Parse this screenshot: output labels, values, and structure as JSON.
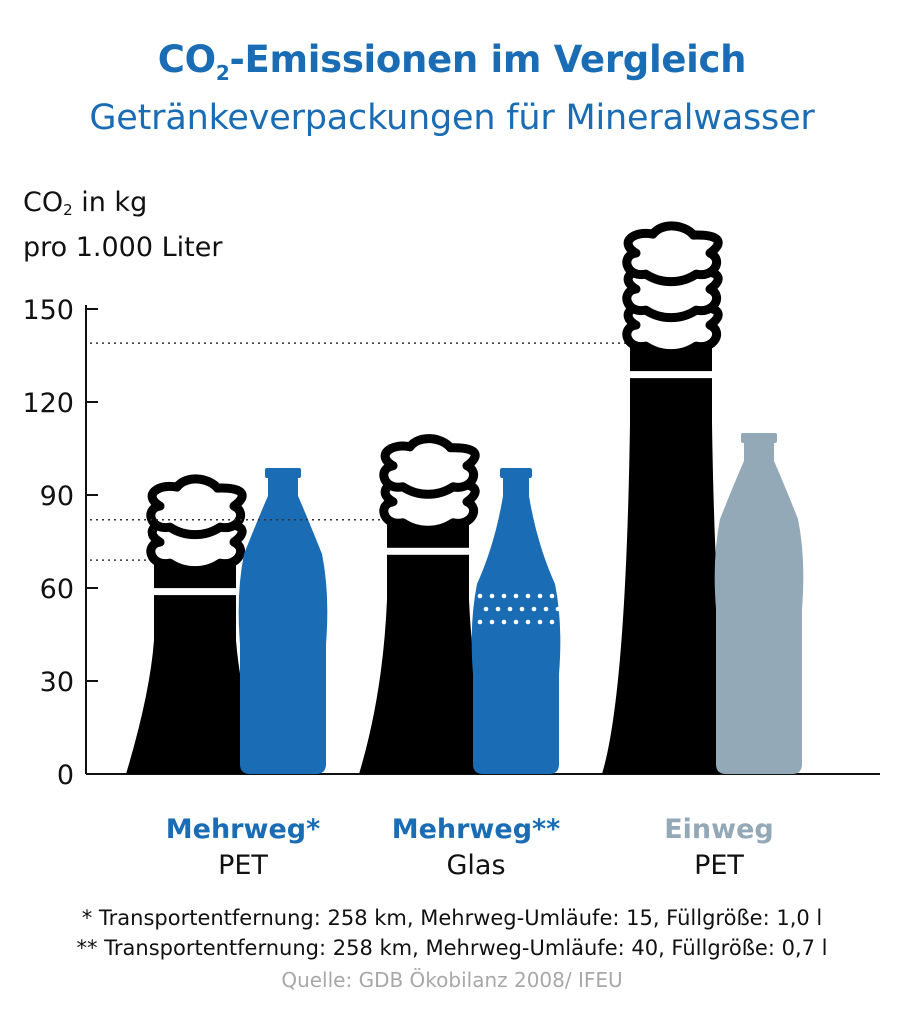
{
  "header": {
    "title_prefix": "CO",
    "title_sub": "2",
    "title_suffix": "-Emissionen im Vergleich",
    "subtitle": "Getränkeverpackungen für Mineralwasser"
  },
  "axis_unit": {
    "line1_prefix": "CO",
    "line1_sub": "2",
    "line1_suffix": " in kg",
    "line2": "pro 1.000 Liter"
  },
  "chart_data": {
    "type": "bar",
    "ylabel": "CO2 in kg pro 1.000 Liter",
    "ylim": [
      0,
      150
    ],
    "yticks": [
      "0",
      "30",
      "60",
      "90",
      "120",
      "150"
    ],
    "grid": false,
    "categories": [
      "Mehrweg* PET",
      "Mehrweg** Glas",
      "Einweg PET"
    ],
    "values": [
      69,
      82,
      139
    ],
    "colors": [
      "#1a6db5",
      "#1a6db5",
      "#93a9b8"
    ],
    "emission_color": "#000000"
  },
  "categories": [
    {
      "main": "Mehrweg*",
      "sub": "PET",
      "color": "#1a6db5"
    },
    {
      "main": "Mehrweg**",
      "sub": "Glas",
      "color": "#1a6db5"
    },
    {
      "main": "Einweg",
      "sub": "PET",
      "color": "#93a9b8"
    }
  ],
  "footnotes": {
    "note1": "* Transportentfernung: 258 km, Mehrweg-Umläufe: 15, Füllgröße: 1,0 l",
    "note2": "** Transportentfernung: 258 km, Mehrweg-Umläufe: 40, Füllgröße: 0,7 l",
    "source": "Quelle: GDB Ökobilanz 2008/ IFEU"
  }
}
